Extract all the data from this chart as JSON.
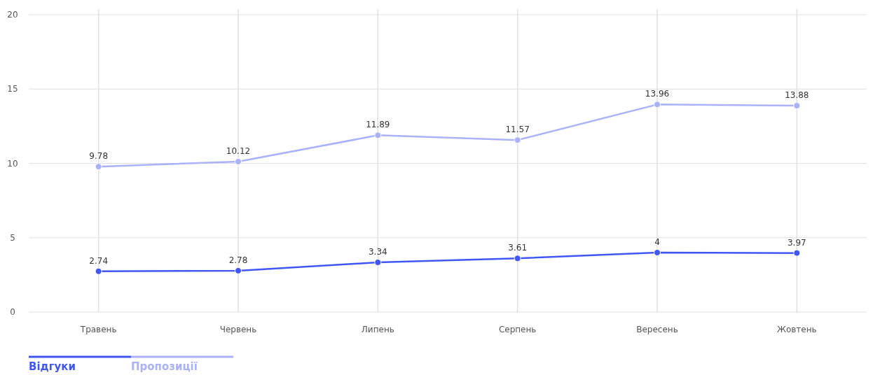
{
  "chart_data": {
    "type": "line",
    "categories": [
      "Травень",
      "Червень",
      "Липень",
      "Серпень",
      "Вересень",
      "Жовтень"
    ],
    "series": [
      {
        "name": "Відгуки",
        "color": "#4157f5",
        "values": [
          2.74,
          2.78,
          3.34,
          3.61,
          4,
          3.97
        ]
      },
      {
        "name": "Пропозиції",
        "color": "#a9b2fb",
        "values": [
          9.78,
          10.12,
          11.89,
          11.57,
          13.96,
          13.88
        ]
      }
    ],
    "ylim": [
      0,
      20
    ],
    "yticks": [
      0,
      5,
      10,
      15,
      20
    ],
    "grid": true,
    "legend": "bottom left",
    "marker": "circle",
    "line_style": "solid",
    "data_labels": true
  }
}
